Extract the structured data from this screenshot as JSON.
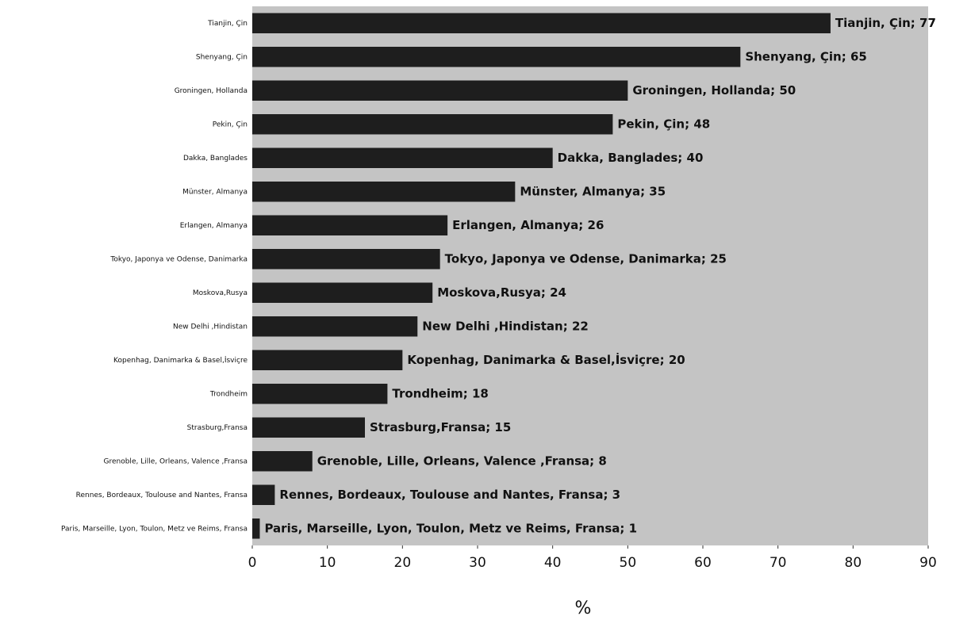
{
  "chart_data": {
    "type": "bar",
    "orientation": "horizontal",
    "x_label": "%",
    "categories": [
      "Tianjin, Çin",
      "Shenyang, Çin",
      "Groningen, Hollanda",
      "Pekin, Çin",
      "Dakka, Banglades",
      "Münster, Almanya",
      "Erlangen, Almanya",
      "Tokyo, Japonya ve  Odense, Danimarka",
      "Moskova,Rusya",
      "New Delhi ,Hindistan",
      "Kopenhag, Danimarka & Basel,İsviçre",
      "Trondheim",
      "Strasburg,Fransa",
      "Grenoble, Lille, Orleans, Valence  ,Fransa",
      "Rennes, Bordeaux, Toulouse and Nantes, Fransa",
      "Paris, Marseille, Lyon, Toulon, Metz ve Reims, Fransa"
    ],
    "values": [
      77,
      65,
      50,
      48,
      40,
      35,
      26,
      25,
      24,
      22,
      20,
      18,
      15,
      8,
      3,
      1
    ],
    "value_labels": [
      "Tianjin, Çin; 77",
      "Shenyang, Çin; 65",
      "Groningen, Hollanda; 50",
      "Pekin, Çin; 48",
      "Dakka, Banglades; 40",
      "Münster, Almanya; 35",
      "Erlangen, Almanya; 26",
      "Tokyo, Japonya ve Odense, Danimarka; 25",
      "Moskova,Rusya; 24",
      "New Delhi ,Hindistan; 22",
      "Kopenhag, Danimarka & Basel,İsviçre; 20",
      "Trondheim; 18",
      "Strasburg,Fransa; 15",
      "Grenoble, Lille, Orleans, Valence ,Fransa; 8",
      "Rennes, Bordeaux, Toulouse and Nantes, Fransa; 3",
      "Paris, Marseille, Lyon, Toulon, Metz ve Reims, Fransa; 1"
    ],
    "color": "#1e1e1e",
    "plot_background": "#c4c4c4",
    "xlim": [
      0,
      90
    ],
    "xticks": [
      0,
      10,
      20,
      30,
      40,
      50,
      60,
      70,
      80,
      90
    ]
  }
}
